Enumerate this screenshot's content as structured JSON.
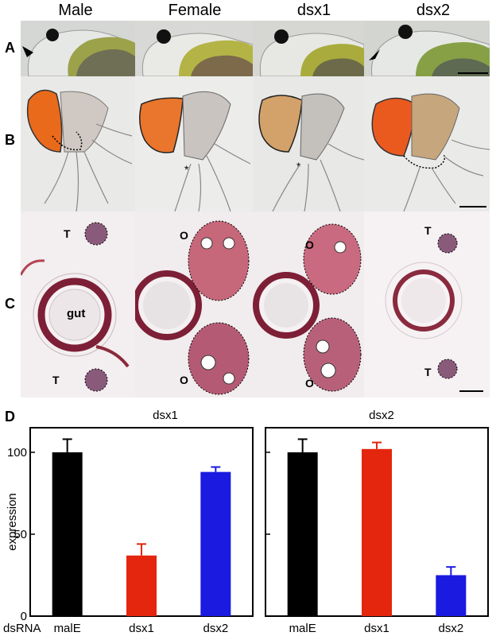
{
  "figure": {
    "columns": [
      "Male",
      "Female",
      "dsx1",
      "dsx2"
    ],
    "rows": [
      "A",
      "B",
      "C"
    ],
    "panel_d_label": "D",
    "section_labels": {
      "testis": "T",
      "ovary": "O",
      "gut": "gut"
    }
  },
  "chart_data": [
    {
      "type": "bar",
      "title": "dsx1",
      "categories": [
        "malE",
        "dsx1",
        "dsx2"
      ],
      "values": [
        100,
        37,
        88
      ],
      "errors": [
        8,
        7,
        3
      ],
      "colors": [
        "#000000",
        "#e3260d",
        "#1a1ae0"
      ],
      "ylabel": "expression",
      "xlabel": "dsRNA",
      "ylim": [
        0,
        115
      ],
      "yticks": [
        "0",
        "50",
        "100"
      ]
    },
    {
      "type": "bar",
      "title": "dsx2",
      "categories": [
        "malE",
        "dsx1",
        "dsx2"
      ],
      "values": [
        100,
        102,
        25
      ],
      "errors": [
        8,
        4,
        5
      ],
      "colors": [
        "#000000",
        "#e3260d",
        "#1a1ae0"
      ],
      "ylim": [
        0,
        115
      ]
    }
  ]
}
